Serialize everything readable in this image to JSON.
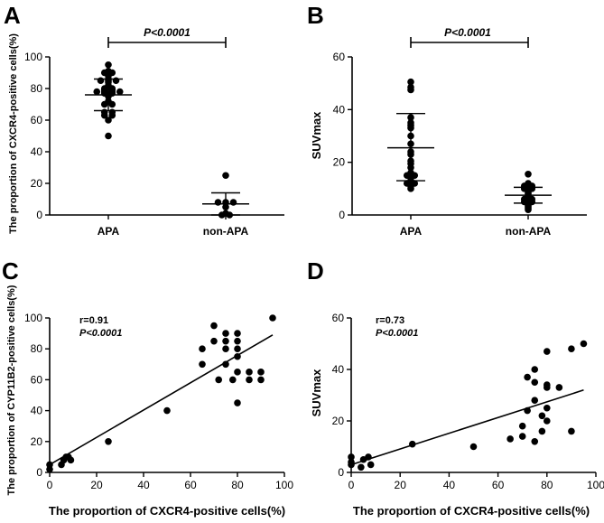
{
  "panels": [
    {
      "label": "A",
      "chart_data": {
        "type": "scatter",
        "subtype": "dot-plot",
        "categories": [
          "APA",
          "non-APA"
        ],
        "ylabel": "The proportion of CXCR4-positive cells(%)",
        "xlabel": "",
        "ylim": [
          0,
          100
        ],
        "yticks": [
          0,
          20,
          40,
          60,
          80,
          100
        ],
        "significance": {
          "text": "P<0.0001",
          "between": [
            "APA",
            "non-APA"
          ]
        },
        "series": [
          {
            "name": "APA",
            "mean": 76,
            "sd_low": 66,
            "sd_high": 86,
            "values": [
              95,
              91,
              90,
              90,
              88,
              86,
              85,
              85,
              85,
              84,
              82,
              80,
              80,
              79,
              79,
              78,
              78,
              78,
              78,
              77,
              77,
              76,
              75,
              72,
              70,
              70,
              65,
              65,
              63,
              63,
              60,
              50
            ]
          },
          {
            "name": "non-APA",
            "mean": 7,
            "sd_low": 0,
            "sd_high": 14,
            "values": [
              25,
              8,
              8,
              8,
              5,
              1,
              0,
              0
            ]
          }
        ]
      }
    },
    {
      "label": "B",
      "chart_data": {
        "type": "scatter",
        "subtype": "dot-plot",
        "categories": [
          "APA",
          "non-APA"
        ],
        "ylabel": "SUVmax",
        "xlabel": "",
        "ylim": [
          0,
          60
        ],
        "yticks": [
          0,
          20,
          40,
          60
        ],
        "significance": {
          "text": "P<0.0001",
          "between": [
            "APA",
            "non-APA"
          ]
        },
        "series": [
          {
            "name": "APA",
            "mean": 25.5,
            "sd_low": 13,
            "sd_high": 38.5,
            "values": [
              50.5,
              48.5,
              47.5,
              37,
              35,
              34,
              33,
              30,
              27,
              24,
              23,
              20.5,
              19.5,
              18,
              16,
              15.5,
              15,
              15,
              14,
              13,
              12,
              12,
              11,
              10
            ]
          },
          {
            "name": "non-APA",
            "mean": 7.5,
            "sd_low": 4.5,
            "sd_high": 10.5,
            "values": [
              15.5,
              12,
              11.5,
              11,
              11,
              10,
              10,
              9.5,
              9,
              8.5,
              8,
              7.5,
              7,
              6.5,
              6,
              6,
              5.5,
              5,
              5,
              4.5,
              4,
              3.5,
              3,
              2.5,
              2
            ]
          }
        ]
      }
    },
    {
      "label": "C",
      "chart_data": {
        "type": "scatter",
        "xlabel": "The proportion of CXCR4-positive cells(%)",
        "ylabel": "The proportion of CYP11B2-positive cells(%)",
        "xlim": [
          0,
          100
        ],
        "ylim": [
          0,
          100
        ],
        "xticks": [
          0,
          20,
          40,
          60,
          80,
          100
        ],
        "yticks": [
          0,
          20,
          40,
          60,
          80,
          100
        ],
        "annotation": {
          "r": "r=0.91",
          "p": "P<0.0001"
        },
        "fit_line": {
          "x": [
            0,
            95
          ],
          "y": [
            5,
            89
          ]
        },
        "points": [
          [
            0,
            2
          ],
          [
            0,
            5
          ],
          [
            5,
            5
          ],
          [
            6,
            8
          ],
          [
            7,
            10
          ],
          [
            8,
            10
          ],
          [
            9,
            8
          ],
          [
            25,
            20
          ],
          [
            50,
            40
          ],
          [
            65,
            70
          ],
          [
            65,
            80
          ],
          [
            70,
            85
          ],
          [
            70,
            95
          ],
          [
            72,
            60
          ],
          [
            75,
            70
          ],
          [
            75,
            80
          ],
          [
            75,
            85
          ],
          [
            75,
            90
          ],
          [
            78,
            60
          ],
          [
            80,
            45
          ],
          [
            80,
            65
          ],
          [
            80,
            75
          ],
          [
            80,
            80
          ],
          [
            80,
            85
          ],
          [
            80,
            90
          ],
          [
            85,
            60
          ],
          [
            85,
            65
          ],
          [
            90,
            60
          ],
          [
            90,
            65
          ],
          [
            95,
            100
          ]
        ]
      }
    },
    {
      "label": "D",
      "chart_data": {
        "type": "scatter",
        "xlabel": "The proportion of CXCR4-positive cells(%)",
        "ylabel": "SUVmax",
        "xlim": [
          0,
          100
        ],
        "ylim": [
          0,
          60
        ],
        "xticks": [
          0,
          20,
          40,
          60,
          80,
          100
        ],
        "yticks": [
          0,
          20,
          40,
          60
        ],
        "annotation": {
          "r": "r=0.73",
          "p": "P<0.0001"
        },
        "fit_line": {
          "x": [
            0,
            95
          ],
          "y": [
            3,
            32
          ]
        },
        "points": [
          [
            0,
            3
          ],
          [
            0,
            4
          ],
          [
            0,
            6
          ],
          [
            4,
            2
          ],
          [
            5,
            5
          ],
          [
            7,
            6
          ],
          [
            8,
            3
          ],
          [
            25,
            11
          ],
          [
            50,
            10
          ],
          [
            65,
            13
          ],
          [
            70,
            14
          ],
          [
            70,
            18
          ],
          [
            72,
            24
          ],
          [
            72,
            37
          ],
          [
            75,
            12
          ],
          [
            75,
            28
          ],
          [
            75,
            35
          ],
          [
            75,
            40
          ],
          [
            78,
            16
          ],
          [
            78,
            22
          ],
          [
            80,
            20
          ],
          [
            80,
            25
          ],
          [
            80,
            33
          ],
          [
            80,
            34
          ],
          [
            80,
            47
          ],
          [
            85,
            33
          ],
          [
            90,
            16
          ],
          [
            90,
            48
          ],
          [
            95,
            50
          ]
        ]
      }
    }
  ]
}
